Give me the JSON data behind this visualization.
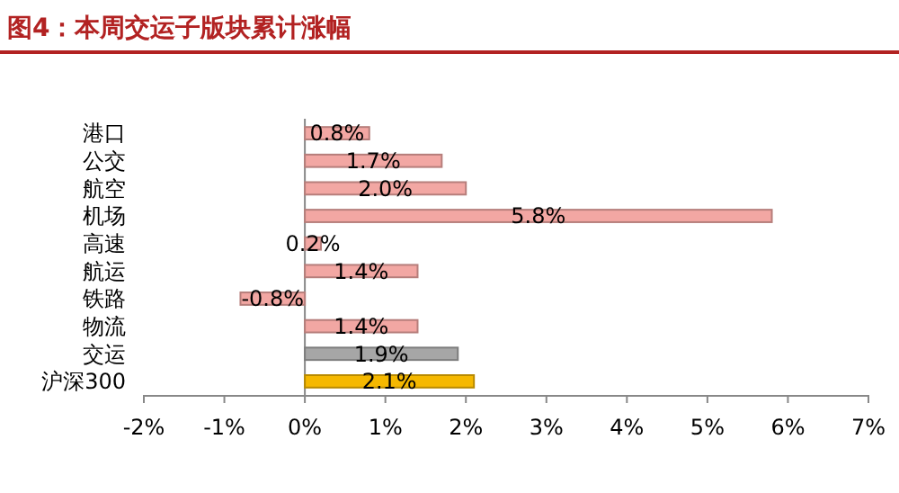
{
  "chart_data": {
    "type": "bar",
    "orientation": "horizontal",
    "title": "图4：本周交运子版块累计涨幅",
    "categories": [
      "港口",
      "公交",
      "航空",
      "机场",
      "高速",
      "航运",
      "铁路",
      "物流",
      "交运",
      "沪深300"
    ],
    "values": [
      0.8,
      1.7,
      2.0,
      5.8,
      0.2,
      1.4,
      -0.8,
      1.4,
      1.9,
      2.1
    ],
    "value_labels": [
      "0.8%",
      "1.7%",
      "2.0%",
      "5.8%",
      "0.2%",
      "1.4%",
      "-0.8%",
      "1.4%",
      "1.9%",
      "2.1%"
    ],
    "colors": [
      "#f2a7a3",
      "#f2a7a3",
      "#f2a7a3",
      "#f2a7a3",
      "#f2a7a3",
      "#f2a7a3",
      "#f2a7a3",
      "#f2a7a3",
      "#a6a6a6",
      "#f5b800"
    ],
    "xlim": [
      -2,
      7
    ],
    "xticks": [
      {
        "value": -2,
        "label": "-2%"
      },
      {
        "value": -1,
        "label": "-1%"
      },
      {
        "value": 0,
        "label": "0%"
      },
      {
        "value": 1,
        "label": "1%"
      },
      {
        "value": 2,
        "label": "2%"
      },
      {
        "value": 3,
        "label": "3%"
      },
      {
        "value": 4,
        "label": "4%"
      },
      {
        "value": 5,
        "label": "5%"
      },
      {
        "value": 6,
        "label": "6%"
      },
      {
        "value": 7,
        "label": "7%"
      }
    ],
    "legend": false
  }
}
